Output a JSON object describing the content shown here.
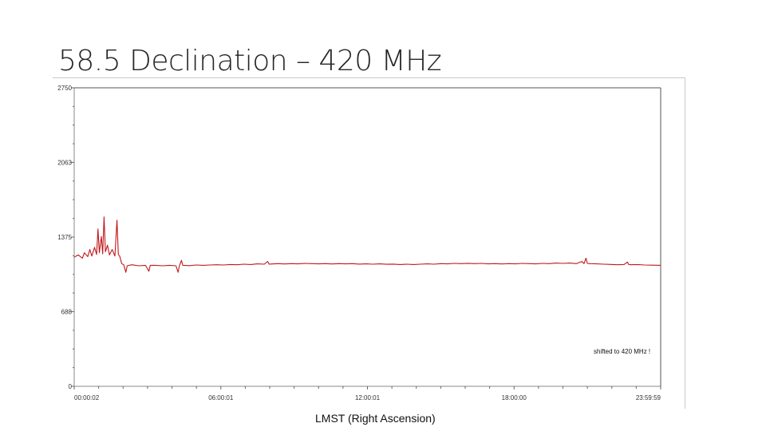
{
  "slide": {
    "title": "58.5 Declination – 420 MHz"
  },
  "chart_data": {
    "type": "line",
    "title": "",
    "xlabel": "LMST (Right Ascension)",
    "ylabel": "",
    "xlim": [
      0,
      86399
    ],
    "ylim": [
      0,
      2750
    ],
    "x_ticks": [
      {
        "value": 2,
        "label": "00:00:02"
      },
      {
        "value": 21601,
        "label": "06:00:01"
      },
      {
        "value": 43201,
        "label": "12:00:01"
      },
      {
        "value": 64800,
        "label": "18:00:00"
      },
      {
        "value": 86399,
        "label": "23:59:59"
      }
    ],
    "y_ticks": [
      {
        "value": 0,
        "label": "0"
      },
      {
        "value": 688,
        "label": "688"
      },
      {
        "value": 1375,
        "label": "1375"
      },
      {
        "value": 2063,
        "label": "2063"
      },
      {
        "value": 2750,
        "label": "2750"
      }
    ],
    "grid": false,
    "annotation": "shifted to 420 MHz !",
    "series": [
      {
        "color": "#c0181c",
        "points": [
          [
            0,
            1190
          ],
          [
            600,
            1210
          ],
          [
            1200,
            1180
          ],
          [
            1500,
            1230
          ],
          [
            2000,
            1195
          ],
          [
            2300,
            1260
          ],
          [
            2600,
            1200
          ],
          [
            3000,
            1280
          ],
          [
            3300,
            1215
          ],
          [
            3500,
            1450
          ],
          [
            3700,
            1230
          ],
          [
            4000,
            1380
          ],
          [
            4200,
            1220
          ],
          [
            4400,
            1560
          ],
          [
            4600,
            1240
          ],
          [
            4900,
            1300
          ],
          [
            5200,
            1210
          ],
          [
            5600,
            1260
          ],
          [
            6000,
            1200
          ],
          [
            6300,
            1530
          ],
          [
            6500,
            1215
          ],
          [
            6700,
            1200
          ],
          [
            7000,
            1130
          ],
          [
            7300,
            1120
          ],
          [
            7600,
            1050
          ],
          [
            7800,
            1110
          ],
          [
            8500,
            1120
          ],
          [
            9500,
            1110
          ],
          [
            10500,
            1115
          ],
          [
            11000,
            1060
          ],
          [
            11200,
            1115
          ],
          [
            12000,
            1115
          ],
          [
            13000,
            1110
          ],
          [
            14000,
            1115
          ],
          [
            15000,
            1110
          ],
          [
            15300,
            1050
          ],
          [
            15500,
            1112
          ],
          [
            15800,
            1160
          ],
          [
            16000,
            1115
          ],
          [
            17000,
            1112
          ],
          [
            18000,
            1118
          ],
          [
            19000,
            1115
          ],
          [
            20000,
            1118
          ],
          [
            21000,
            1120
          ],
          [
            22000,
            1118
          ],
          [
            23000,
            1122
          ],
          [
            24000,
            1120
          ],
          [
            25000,
            1125
          ],
          [
            26000,
            1122
          ],
          [
            27000,
            1128
          ],
          [
            28000,
            1125
          ],
          [
            28500,
            1150
          ],
          [
            28700,
            1126
          ],
          [
            30000,
            1130
          ],
          [
            31000,
            1127
          ],
          [
            32000,
            1130
          ],
          [
            33000,
            1128
          ],
          [
            34000,
            1132
          ],
          [
            35000,
            1130
          ],
          [
            36000,
            1128
          ],
          [
            37000,
            1130
          ],
          [
            38000,
            1127
          ],
          [
            39000,
            1130
          ],
          [
            40000,
            1128
          ],
          [
            41000,
            1130
          ],
          [
            42000,
            1126
          ],
          [
            43000,
            1128
          ],
          [
            44000,
            1125
          ],
          [
            45000,
            1128
          ],
          [
            46000,
            1124
          ],
          [
            47000,
            1126
          ],
          [
            48000,
            1122
          ],
          [
            49000,
            1125
          ],
          [
            50000,
            1122
          ],
          [
            51000,
            1125
          ],
          [
            52000,
            1128
          ],
          [
            53000,
            1125
          ],
          [
            54000,
            1130
          ],
          [
            55000,
            1128
          ],
          [
            56000,
            1132
          ],
          [
            57000,
            1130
          ],
          [
            58000,
            1133
          ],
          [
            59000,
            1130
          ],
          [
            60000,
            1132
          ],
          [
            61000,
            1128
          ],
          [
            62000,
            1130
          ],
          [
            63000,
            1127
          ],
          [
            64000,
            1130
          ],
          [
            65000,
            1128
          ],
          [
            66000,
            1132
          ],
          [
            67000,
            1130
          ],
          [
            68000,
            1128
          ],
          [
            69000,
            1132
          ],
          [
            70000,
            1130
          ],
          [
            71000,
            1135
          ],
          [
            72000,
            1132
          ],
          [
            73000,
            1135
          ],
          [
            74000,
            1130
          ],
          [
            74800,
            1150
          ],
          [
            75100,
            1130
          ],
          [
            75400,
            1180
          ],
          [
            75600,
            1132
          ],
          [
            76000,
            1130
          ],
          [
            77000,
            1128
          ],
          [
            78000,
            1125
          ],
          [
            79000,
            1123
          ],
          [
            80000,
            1120
          ],
          [
            81000,
            1122
          ],
          [
            81500,
            1145
          ],
          [
            81700,
            1122
          ],
          [
            82000,
            1120
          ],
          [
            83000,
            1122
          ],
          [
            84000,
            1118
          ],
          [
            85000,
            1116
          ],
          [
            86399,
            1115
          ]
        ]
      }
    ]
  }
}
